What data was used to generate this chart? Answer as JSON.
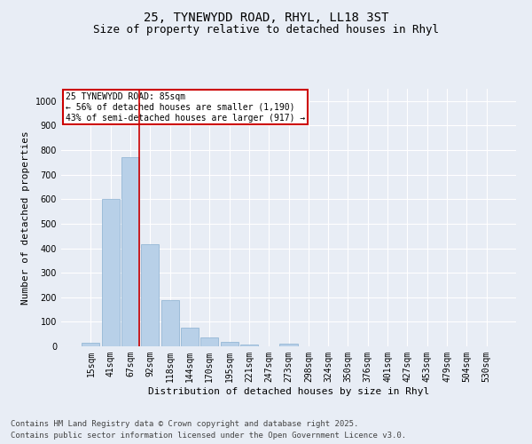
{
  "title_line1": "25, TYNEWYDD ROAD, RHYL, LL18 3ST",
  "title_line2": "Size of property relative to detached houses in Rhyl",
  "xlabel": "Distribution of detached houses by size in Rhyl",
  "ylabel": "Number of detached properties",
  "categories": [
    "15sqm",
    "41sqm",
    "67sqm",
    "92sqm",
    "118sqm",
    "144sqm",
    "170sqm",
    "195sqm",
    "221sqm",
    "247sqm",
    "273sqm",
    "298sqm",
    "324sqm",
    "350sqm",
    "376sqm",
    "401sqm",
    "427sqm",
    "453sqm",
    "479sqm",
    "504sqm",
    "530sqm"
  ],
  "values": [
    15,
    600,
    770,
    415,
    190,
    75,
    35,
    17,
    8,
    0,
    12,
    0,
    0,
    0,
    0,
    0,
    0,
    0,
    0,
    0,
    0
  ],
  "bar_color": "#b8d0e8",
  "bar_edge_color": "#8ab0d0",
  "vline_color": "#cc0000",
  "annotation_title": "25 TYNEWYDD ROAD: 85sqm",
  "annotation_line1": "← 56% of detached houses are smaller (1,190)",
  "annotation_line2": "43% of semi-detached houses are larger (917) →",
  "annotation_box_color": "#cc0000",
  "ylim": [
    0,
    1050
  ],
  "yticks": [
    0,
    100,
    200,
    300,
    400,
    500,
    600,
    700,
    800,
    900,
    1000
  ],
  "bg_color": "#e8edf5",
  "plot_bg_color": "#e8edf5",
  "footer_line1": "Contains HM Land Registry data © Crown copyright and database right 2025.",
  "footer_line2": "Contains public sector information licensed under the Open Government Licence v3.0.",
  "title_fontsize": 10,
  "subtitle_fontsize": 9,
  "axis_label_fontsize": 8,
  "tick_fontsize": 7,
  "footer_fontsize": 6.5,
  "vline_bar_index": 2
}
